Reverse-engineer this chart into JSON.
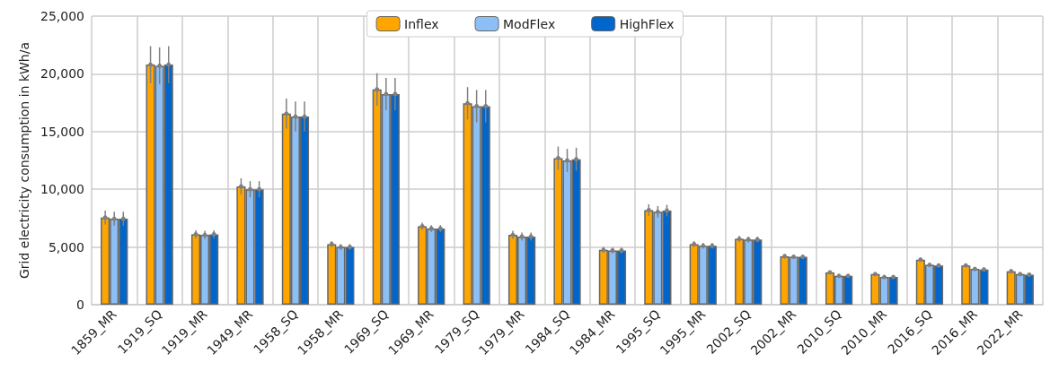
{
  "chart_data": {
    "type": "bar",
    "ylabel": "Grid electricity consumption in kWh/a",
    "categories": [
      "1859_MR",
      "1919_SQ",
      "1919_MR",
      "1949_MR",
      "1958_SQ",
      "1958_MR",
      "1969_SQ",
      "1969_MR",
      "1979_SQ",
      "1979_MR",
      "1984_SQ",
      "1984_MR",
      "1995_SQ",
      "1995_MR",
      "2002_SQ",
      "2002_MR",
      "2010_SQ",
      "2010_MR",
      "2016_SQ",
      "2016_MR",
      "2022_MR"
    ],
    "series": [
      {
        "name": "Inflex",
        "color": "#ffa500",
        "values": [
          7550,
          20800,
          6100,
          10250,
          16550,
          5250,
          18650,
          6800,
          17450,
          6050,
          12700,
          4750,
          8200,
          5250,
          5700,
          4200,
          2800,
          2650,
          3900,
          3400,
          2900
        ],
        "errors": [
          600,
          1600,
          350,
          700,
          1300,
          250,
          1400,
          300,
          1400,
          350,
          1000,
          250,
          500,
          250,
          250,
          200,
          100,
          100,
          150,
          150,
          100
        ]
      },
      {
        "name": "ModFlex",
        "color": "#8cbff5",
        "values": [
          7450,
          20700,
          6050,
          10000,
          16300,
          5000,
          18250,
          6600,
          17200,
          5900,
          12500,
          4700,
          8050,
          5100,
          5650,
          4150,
          2500,
          2400,
          3450,
          3100,
          2650
        ],
        "errors": [
          600,
          1600,
          350,
          700,
          1300,
          250,
          1400,
          300,
          1400,
          350,
          1000,
          250,
          500,
          250,
          250,
          200,
          100,
          100,
          150,
          150,
          100
        ]
      },
      {
        "name": "HighFlex",
        "color": "#0066cc",
        "values": [
          7450,
          20800,
          6100,
          10000,
          16300,
          5000,
          18250,
          6600,
          17200,
          5900,
          12600,
          4700,
          8150,
          5100,
          5650,
          4150,
          2500,
          2400,
          3400,
          3050,
          2600
        ],
        "errors": [
          600,
          1600,
          350,
          700,
          1300,
          250,
          1400,
          300,
          1400,
          350,
          1000,
          250,
          500,
          250,
          250,
          200,
          100,
          100,
          150,
          150,
          100
        ]
      }
    ],
    "ylim": [
      0,
      25000
    ],
    "yticks": [
      0,
      {
        "value": 5000,
        "label": "5,000"
      },
      {
        "value": 10000,
        "label": "10,000"
      },
      {
        "value": 15000,
        "label": "15,000"
      },
      {
        "value": 20000,
        "label": "20,000"
      },
      {
        "value": 25000,
        "label": "25,000"
      }
    ],
    "grid": true,
    "legend": "top"
  }
}
